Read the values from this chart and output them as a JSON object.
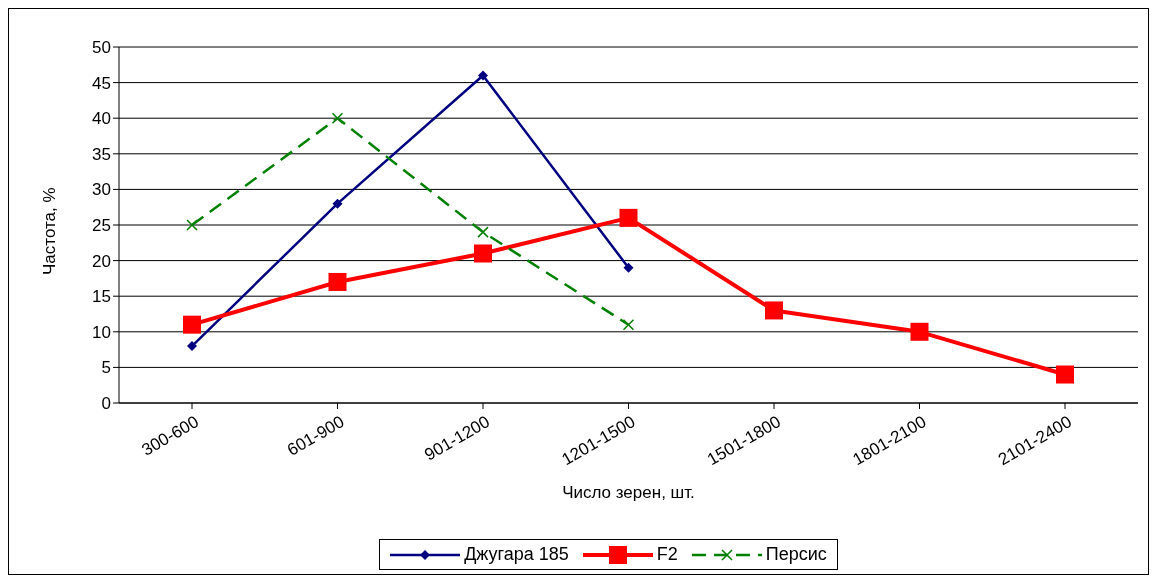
{
  "chart_data": {
    "type": "line",
    "xlabel": "Число зерен, шт.",
    "ylabel": "Частота, %",
    "categories": [
      "300-600",
      "601-900",
      "901-1200",
      "1201-1500",
      "1501-1800",
      "1801-2100",
      "2101-2400"
    ],
    "series": [
      {
        "name": "Джугара 185",
        "color": "#000080",
        "values": [
          8,
          28,
          46,
          19,
          null,
          null,
          null
        ],
        "marker": "diamond",
        "line_style": "solid"
      },
      {
        "name": "F2",
        "color": "#ff0000",
        "values": [
          11,
          17,
          21,
          26,
          13,
          10,
          4
        ],
        "marker": "square",
        "line_style": "solid"
      },
      {
        "name": "Персис",
        "color": "#008000",
        "values": [
          25,
          40,
          24,
          11,
          null,
          null,
          null
        ],
        "marker": "cross",
        "line_style": "dashed"
      }
    ],
    "ylim": [
      0,
      50
    ],
    "yticks": [
      0,
      5,
      10,
      15,
      20,
      25,
      30,
      35,
      40,
      45,
      50
    ],
    "grid": "y",
    "legend": "bottom"
  }
}
